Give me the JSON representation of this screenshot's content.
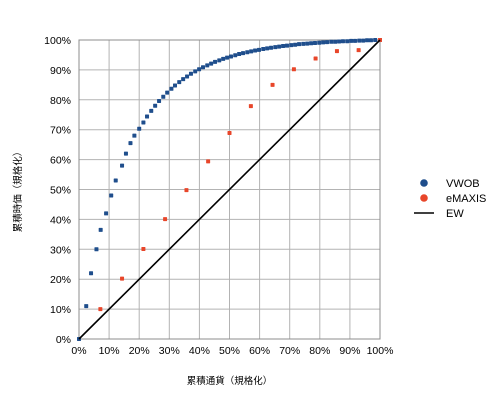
{
  "chart_data": {
    "type": "scatter",
    "xlabel": "累積通貨（規格化）",
    "ylabel": "累積時価（規格化）",
    "xlim": [
      0,
      100
    ],
    "ylim": [
      0,
      100
    ],
    "grid": true,
    "legend_position": "right",
    "x_tick_labels": [
      "0%",
      "10%",
      "20%",
      "30%",
      "40%",
      "50%",
      "60%",
      "70%",
      "80%",
      "90%",
      "100%"
    ],
    "y_tick_labels": [
      "0%",
      "10%",
      "20%",
      "30%",
      "40%",
      "50%",
      "60%",
      "70%",
      "80%",
      "90%",
      "100%"
    ],
    "series": [
      {
        "name": "VWOB",
        "kind": "points",
        "color": "#1f4e8c",
        "x": [
          0,
          2.4,
          4,
          5.8,
          7.2,
          9,
          10.7,
          12.2,
          14.3,
          15.6,
          17.1,
          18.4,
          20,
          21.4,
          22.6,
          24,
          25.3,
          26.6,
          28,
          29.3,
          30.7,
          31.9,
          33.3,
          34.6,
          35.9,
          37.2,
          38.6,
          39.9,
          41.2,
          42.6,
          43.9,
          45.2,
          46.6,
          47.9,
          49.2,
          50.5,
          51.9,
          53.2,
          54.5,
          55.9,
          57.2,
          58.5,
          59.8,
          61.2,
          62.5,
          63.8,
          65.2,
          66.5,
          67.8,
          69.1,
          70.5,
          71.8,
          73.1,
          74.5,
          75.8,
          77.1,
          78.4,
          79.8,
          81.1,
          82.4,
          83.8,
          85.1,
          86.4,
          87.7,
          89.1,
          90.4,
          91.7,
          93.1,
          94.4,
          95.7,
          97,
          98.4,
          100
        ],
        "y": [
          0,
          11,
          22,
          30,
          36.5,
          42,
          48,
          53,
          58,
          62,
          65.5,
          68,
          70.3,
          72.4,
          74.4,
          76.3,
          78,
          79.6,
          81,
          82.4,
          83.7,
          84.8,
          85.9,
          86.9,
          87.8,
          88.7,
          89.5,
          90.2,
          90.9,
          91.5,
          92.1,
          92.7,
          93.2,
          93.7,
          94.1,
          94.5,
          94.9,
          95.3,
          95.6,
          95.9,
          96.2,
          96.5,
          96.7,
          97,
          97.2,
          97.4,
          97.6,
          97.8,
          98,
          98.1,
          98.3,
          98.4,
          98.6,
          98.7,
          98.8,
          98.9,
          99,
          99.1,
          99.2,
          99.3,
          99.4,
          99.4,
          99.5,
          99.6,
          99.6,
          99.7,
          99.7,
          99.8,
          99.8,
          99.9,
          99.9,
          100,
          100
        ]
      },
      {
        "name": "eMAXIS",
        "kind": "points",
        "color": "#e8462a",
        "x": [
          7.1,
          14.3,
          21.4,
          28.6,
          35.7,
          42.9,
          50,
          57.1,
          64.3,
          71.4,
          78.6,
          85.7,
          92.9,
          100
        ],
        "y": [
          10,
          20.2,
          30.1,
          40.1,
          49.8,
          59.4,
          68.9,
          77.9,
          85,
          90.2,
          93.8,
          96.3,
          96.6,
          100
        ]
      },
      {
        "name": "EW",
        "kind": "line",
        "color": "#000000",
        "x": [
          0,
          100
        ],
        "y": [
          0,
          100
        ]
      }
    ]
  }
}
